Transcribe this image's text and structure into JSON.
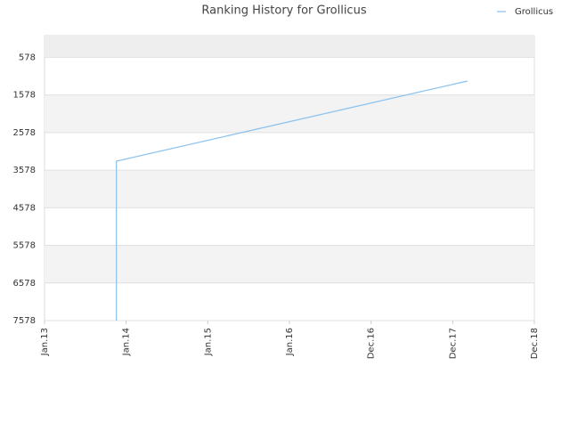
{
  "chart_data": {
    "type": "line",
    "title": "Ranking History for Grollicus",
    "x": [
      2013.88,
      2013.88,
      2018.18
    ],
    "series": [
      {
        "name": "Grollicus",
        "color": "#8ec3ee",
        "values": [
          7578,
          3339,
          1208
        ]
      }
    ],
    "xlim": [
      2013,
      2019
    ],
    "xticks": [
      {
        "value": 2013,
        "label": "Jan.13"
      },
      {
        "value": 2014,
        "label": "Jan.14"
      },
      {
        "value": 2015,
        "label": "Jan.15"
      },
      {
        "value": 2016,
        "label": "Jan.16"
      },
      {
        "value": 2017,
        "label": "Dec.16"
      },
      {
        "value": 2018,
        "label": "Dec.17"
      },
      {
        "value": 2019,
        "label": "Dec.18"
      }
    ],
    "ylim": [
      7578,
      0
    ],
    "yticks": [
      578,
      1578,
      2578,
      3578,
      4578,
      5578,
      6578,
      7578
    ],
    "grid": true,
    "legend": "top-right"
  }
}
